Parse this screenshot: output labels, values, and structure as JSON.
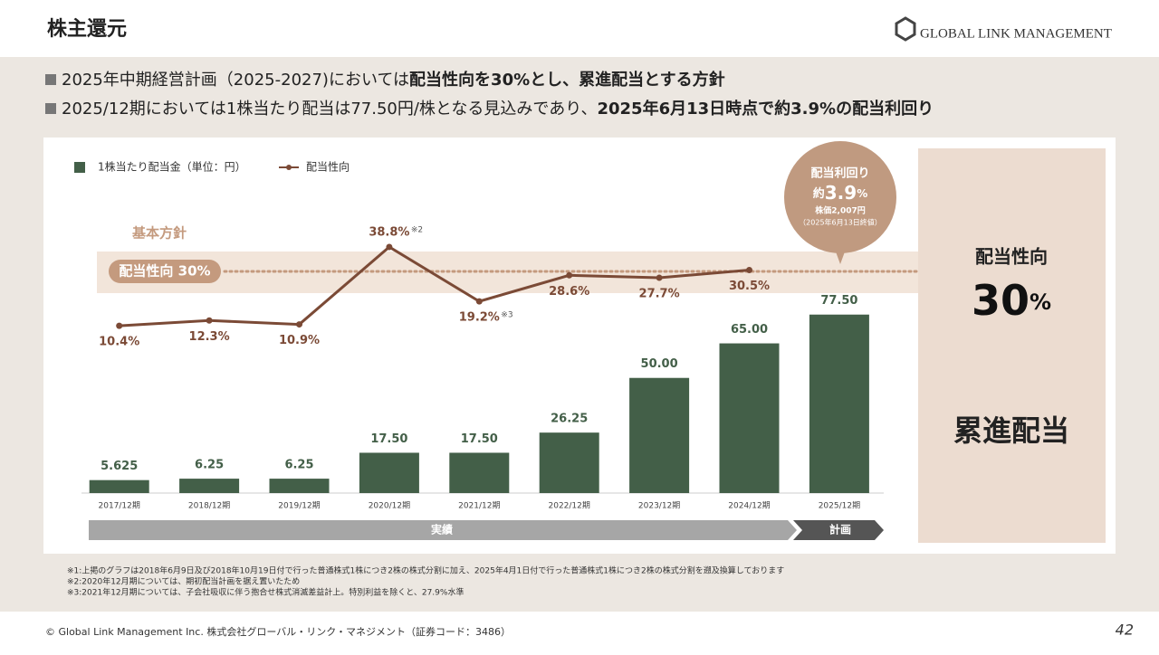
{
  "header": {
    "title": "株主還元",
    "logo": "GLOBAL LINK MANAGEMENT"
  },
  "bullets": [
    {
      "normal": "2025年中期経営計画（2025-2027)においては",
      "bold": "配当性向を30%とし、累進配当とする方針"
    },
    {
      "normal": "2025/12期においては1株当たり配当は77.50円/株となる見込みであり、",
      "bold": "2025年6月13日時点で約3.9%の配当利回り"
    }
  ],
  "chart_data": {
    "type": "bar_line",
    "categories": [
      "2017/12期",
      "2018/12期",
      "2019/12期",
      "2020/12期",
      "2021/12期",
      "2022/12期",
      "2023/12期",
      "2024/12期",
      "2025/12期"
    ],
    "series": [
      {
        "name": "1株当たり配当金（単位：円）",
        "type": "bar",
        "color": "#435f48",
        "values": [
          5.625,
          6.25,
          6.25,
          17.5,
          17.5,
          26.25,
          50,
          65,
          77.5
        ],
        "value_labels": [
          "5.625",
          "6.25",
          "6.25",
          "17.50",
          "17.50",
          "26.25",
          "50.00",
          "65.00",
          "77.50"
        ]
      },
      {
        "name": "配当性向",
        "type": "line",
        "axis": "y2",
        "color": "#7b4a36",
        "values": [
          10.4,
          12.3,
          10.9,
          38.8,
          19.2,
          28.6,
          27.7,
          30.5,
          null
        ],
        "value_labels": [
          "10.4%",
          "12.3%",
          "10.9%",
          "38.8%",
          "19.2%",
          "28.6%",
          "27.7%",
          "30.5%",
          null
        ],
        "notes": [
          null,
          null,
          null,
          "※2",
          "※3",
          null,
          null,
          null,
          null
        ]
      }
    ],
    "ylim": [
      0,
      110
    ],
    "y2lim": [
      0,
      60
    ],
    "policy": {
      "title": "基本方針",
      "label": "配当性向 30%",
      "value": 30
    },
    "phases": [
      "実績",
      "計画"
    ]
  },
  "callout": {
    "title": "配当利回り",
    "prefix": "約",
    "value": "3.9",
    "unit": "%",
    "price": "株価2,007円",
    "date": "（2025年6月13日終値）"
  },
  "side": {
    "title": "配当性向",
    "value": "30",
    "unit": "%",
    "policy": "累進配当"
  },
  "footnotes": [
    "※1:上掲のグラフは2018年6月9日及び2018年10月19日付で行った普通株式1株につき2株の株式分割に加え、2025年4月1日付で行った普通株式1株につき2株の株式分割を遡及換算しております",
    "※2:2020年12月期については、期初配当計画を据え置いたため",
    "※3:2021年12月期については、子会社吸収に伴う抱合せ株式消滅差益計上。特別利益を除くと、27.9%水準"
  ],
  "footer": {
    "copyright": "© Global Link Management Inc.  株式会社グローバル・リンク・マネジメント（証券コード：3486）",
    "page": "42"
  }
}
